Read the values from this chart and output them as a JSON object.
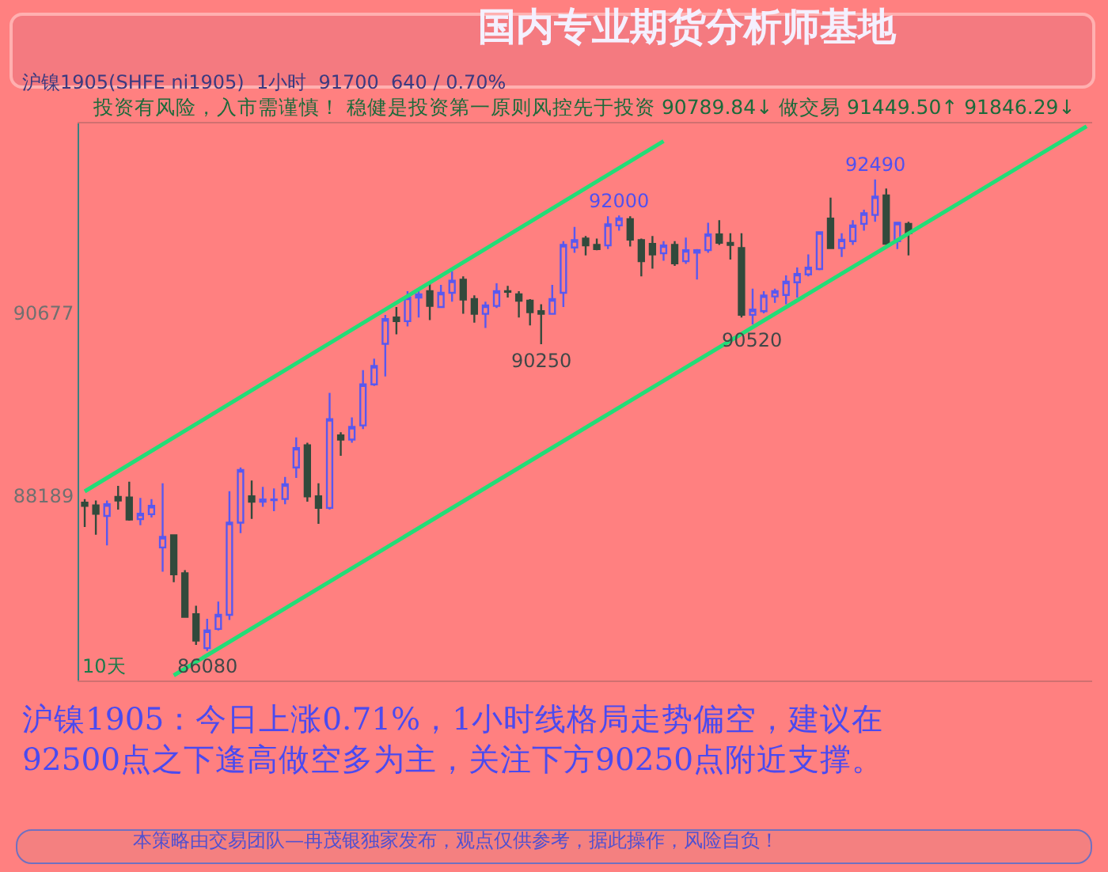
{
  "chart_data": {
    "type": "candlestick",
    "title": "国内专业期货分析师基地",
    "subtitle": "沪镍1905(SHFE ni1905)  1小时  91700  640 / 0.70%",
    "categories": [
      null,
      null,
      null,
      null,
      null,
      null,
      null,
      null,
      null,
      null,
      null,
      null,
      null,
      null,
      null,
      null,
      null,
      null,
      null,
      null,
      null,
      null,
      null,
      null,
      null,
      null,
      null,
      null,
      null,
      null,
      null,
      null,
      null,
      null,
      null,
      null,
      null,
      null,
      null,
      null,
      null,
      null,
      null,
      null,
      null,
      null,
      null,
      null,
      null,
      null,
      null,
      null,
      null,
      null,
      null,
      null,
      null,
      null,
      null,
      null,
      null,
      null,
      null,
      null,
      null,
      null,
      null,
      null,
      null,
      null,
      null,
      null,
      null,
      null,
      null,
      null,
      null,
      null,
      null,
      null,
      null,
      null,
      null,
      null,
      null,
      null,
      null,
      null,
      null,
      null,
      null
    ],
    "ohlc": [
      [
        88096,
        88146,
        87767,
        88053
      ],
      [
        88061,
        88125,
        87660,
        87946
      ],
      [
        87917,
        88125,
        87517,
        88075
      ],
      [
        88175,
        88325,
        88003,
        88125
      ],
      [
        88168,
        88382,
        87853,
        87867
      ],
      [
        87874,
        88161,
        87789,
        87946
      ],
      [
        87939,
        88146,
        87896,
        88053
      ],
      [
        87488,
        88361,
        87159,
        87631
      ],
      [
        87653,
        87667,
        87017,
        87124
      ],
      [
        87138,
        87181,
        86537,
        86544
      ],
      [
        86580,
        86695,
        86165,
        86223
      ],
      [
        86120,
        86520,
        86080,
        86360
      ],
      [
        86380,
        86752,
        86359,
        86573
      ],
      [
        86573,
        88253,
        86502,
        87825
      ],
      [
        87825,
        88575,
        87682,
        88540
      ],
      [
        88182,
        88397,
        87875,
        88110
      ],
      [
        88110,
        88311,
        88039,
        88139
      ],
      [
        88130,
        88290,
        87982,
        88140
      ],
      [
        88146,
        88447,
        88075,
        88347
      ],
      [
        88575,
        88983,
        88432,
        88840
      ],
      [
        88876,
        88912,
        88110,
        88182
      ],
      [
        88182,
        88361,
        87810,
        88025
      ],
      [
        88025,
        89590,
        88003,
        89233
      ],
      [
        89011,
        89054,
        88733,
        88954
      ],
      [
        88954,
        89254,
        88912,
        89126
      ],
      [
        89147,
        89898,
        89097,
        89705
      ],
      [
        89705,
        90055,
        89684,
        89955
      ],
      [
        90256,
        90648,
        89812,
        90592
      ],
      [
        90613,
        90756,
        90384,
        90563
      ],
      [
        90563,
        90970,
        90492,
        90885
      ],
      [
        90885,
        90970,
        90613,
        90928
      ],
      [
        90970,
        91099,
        90577,
        90770
      ],
      [
        90756,
        91056,
        90742,
        90949
      ],
      [
        90949,
        91242,
        90828,
        91114
      ],
      [
        91128,
        91171,
        90663,
        90856
      ],
      [
        90863,
        90913,
        90542,
        90663
      ],
      [
        90663,
        90828,
        90470,
        90777
      ],
      [
        90770,
        91078,
        90742,
        90970
      ],
      [
        90970,
        91042,
        90885,
        90963
      ],
      [
        90928,
        90970,
        90613,
        90842
      ],
      [
        90842,
        90863,
        90506,
        90684
      ],
      [
        90699,
        90792,
        90250,
        90663
      ],
      [
        90663,
        91056,
        90663,
        90863
      ],
      [
        90949,
        91650,
        90756,
        91600
      ],
      [
        91564,
        91843,
        91492,
        91664
      ],
      [
        91686,
        91721,
        91457,
        91593
      ],
      [
        91600,
        91686,
        91528,
        91543
      ],
      [
        91593,
        91990,
        91543,
        91879
      ],
      [
        91864,
        92000,
        91793,
        91960
      ],
      [
        91950,
        91990,
        91578,
        91671
      ],
      [
        91664,
        91686,
        91171,
        91378
      ],
      [
        91614,
        91721,
        91278,
        91471
      ],
      [
        91485,
        91650,
        91385,
        91593
      ],
      [
        91600,
        91650,
        91314,
        91350
      ],
      [
        91378,
        91700,
        91342,
        91528
      ],
      [
        91493,
        91543,
        91128,
        91528
      ],
      [
        91528,
        91900,
        91492,
        91743
      ],
      [
        91743,
        91936,
        91600,
        91628
      ],
      [
        91628,
        91757,
        91400,
        91600
      ],
      [
        91557,
        91757,
        90613,
        90649
      ],
      [
        90649,
        91006,
        90520,
        90720
      ],
      [
        90699,
        90970,
        90670,
        90913
      ],
      [
        90899,
        91006,
        90813,
        90970
      ],
      [
        90920,
        91185,
        90792,
        91099
      ],
      [
        91092,
        91292,
        90885,
        91206
      ],
      [
        91199,
        91471,
        91171,
        91292
      ],
      [
        91271,
        91771,
        91256,
        91771
      ],
      [
        91957,
        92243,
        91543,
        91557
      ],
      [
        91557,
        91757,
        91435,
        91671
      ],
      [
        91650,
        91936,
        91600,
        91864
      ],
      [
        91886,
        92079,
        91793,
        92029
      ],
      [
        92007,
        92490,
        91914,
        92257
      ],
      [
        92272,
        92365,
        91600,
        91614
      ],
      [
        91650,
        91914,
        91543,
        91900
      ],
      [
        91886,
        91914,
        91457,
        91757
      ],
      null,
      null,
      null,
      null,
      null,
      null,
      null,
      null,
      null,
      null,
      null,
      null,
      null,
      null,
      null,
      null
    ],
    "series": [
      {
        "type": "line",
        "values": [
          88250,
          null,
          null,
          null,
          null,
          null,
          null,
          null,
          null,
          null,
          null,
          null,
          null,
          null,
          null,
          null,
          null,
          null,
          null,
          null,
          null,
          null,
          null,
          null,
          null,
          null,
          null,
          null,
          null,
          null,
          null,
          null,
          null,
          null,
          null,
          null,
          null,
          null,
          null,
          null,
          null,
          null,
          null,
          null,
          null,
          null,
          null,
          null,
          null,
          null,
          null,
          null,
          93010,
          null,
          null,
          null,
          null,
          null,
          null,
          null,
          null,
          null,
          null,
          null,
          null,
          null,
          null,
          null,
          null,
          null,
          null,
          null,
          null,
          null,
          null,
          null,
          null,
          null,
          null,
          null,
          null,
          null,
          null,
          null,
          null,
          null,
          null,
          null,
          null,
          null,
          null
        ],
        "color": "#22dd77"
      },
      {
        "type": "line",
        "values": [
          null,
          null,
          null,
          null,
          null,
          null,
          null,
          null,
          85750,
          null,
          null,
          null,
          null,
          null,
          null,
          null,
          null,
          null,
          null,
          null,
          null,
          null,
          null,
          null,
          null,
          null,
          null,
          null,
          null,
          null,
          null,
          null,
          null,
          null,
          null,
          null,
          null,
          null,
          null,
          null,
          null,
          null,
          null,
          null,
          null,
          null,
          null,
          null,
          null,
          null,
          null,
          null,
          null,
          null,
          null,
          null,
          null,
          null,
          null,
          null,
          null,
          null,
          null,
          null,
          null,
          null,
          null,
          null,
          null,
          null,
          null,
          null,
          null,
          null,
          null,
          null,
          null,
          null,
          null,
          null,
          null,
          null,
          null,
          null,
          null,
          null,
          null,
          null,
          null,
          null,
          93210
        ],
        "color": "#22dd77"
      }
    ],
    "ylim": [
      85680,
      93250
    ],
    "yticks": [
      88189,
      90677
    ],
    "tick_labels": "y",
    "annotations": [
      "投资有风险，入市需谨慎！ 稳健是投资第一原则风控先于投资 90789.84↓ 做交易 91449.50↑ 91846.29↓",
      "10天",
      {
        "text": "92000",
        "y": 92000
      },
      {
        "text": "90250",
        "y": 90250
      },
      {
        "text": "86080",
        "y": 86080
      },
      {
        "text": "92490",
        "y": 92490
      },
      {
        "text": "90520",
        "y": 90520
      },
      "沪镍1905：今日上涨0.71%，1小时线格局走势偏空，建议在\n92500点之下逢高做空多为主，关注下方90250点附近支撑。",
      "本策略由交易团队—冉茂银独家发布，观点仅供参考，据此操作，风险自负！"
    ]
  }
}
